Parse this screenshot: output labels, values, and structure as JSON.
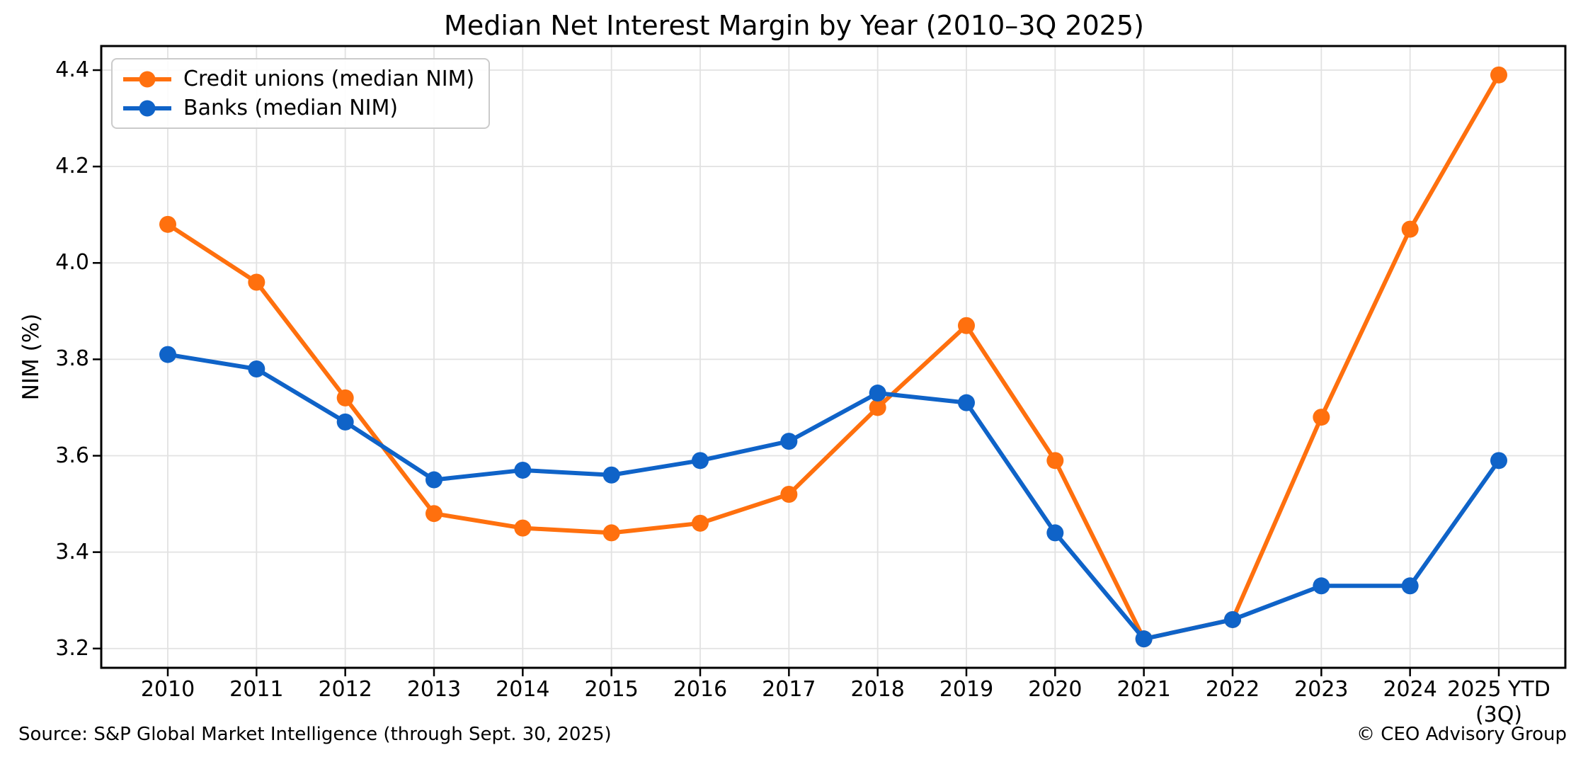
{
  "title": "Median Net Interest Margin by Year (2010–3Q 2025)",
  "footer": {
    "source": "Source: S&P Global Market Intelligence (through Sept. 30, 2025)",
    "copyright": "© CEO Advisory Group"
  },
  "chart_data": {
    "type": "line",
    "title": "Median Net Interest Margin by Year (2010–3Q 2025)",
    "xlabel": "",
    "ylabel": "NIM (%)",
    "categories": [
      "2010",
      "2011",
      "2012",
      "2013",
      "2014",
      "2015",
      "2016",
      "2017",
      "2018",
      "2019",
      "2020",
      "2021",
      "2022",
      "2023",
      "2024",
      "2025 YTD"
    ],
    "last_category_line2": "(3Q)",
    "series": [
      {
        "name": "Credit unions (median NIM)",
        "color": "#ff700e",
        "values": [
          4.08,
          3.96,
          3.72,
          3.48,
          3.45,
          3.44,
          3.46,
          3.52,
          3.7,
          3.87,
          3.59,
          3.22,
          3.26,
          3.68,
          4.07,
          4.39
        ]
      },
      {
        "name": "Banks (median NIM)",
        "color": "#0f63c8",
        "values": [
          3.81,
          3.78,
          3.67,
          3.55,
          3.57,
          3.56,
          3.59,
          3.63,
          3.73,
          3.71,
          3.44,
          3.22,
          3.26,
          3.33,
          3.33,
          3.59
        ]
      }
    ],
    "ytick_labels": [
      "3.2",
      "3.4",
      "3.6",
      "3.8",
      "4.0",
      "4.2",
      "4.4"
    ],
    "ylim": [
      3.16,
      4.45
    ],
    "grid": true,
    "legend_position": "upper left",
    "grid_color": "#e2e2e2",
    "axis_color": "#000000",
    "text_color": "#000000"
  }
}
